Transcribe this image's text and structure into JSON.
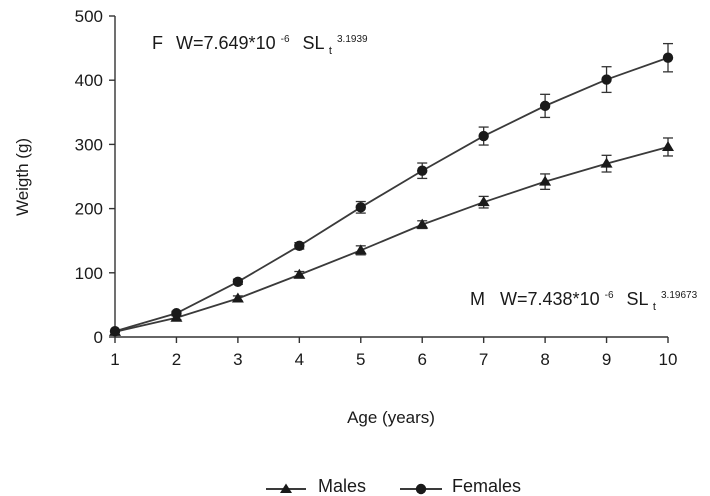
{
  "chart_data": {
    "type": "line",
    "title": "",
    "xlabel": "Age (years)",
    "ylabel": "Weigth (g)",
    "x": [
      1,
      2,
      3,
      4,
      5,
      6,
      7,
      8,
      9,
      10
    ],
    "x_ticks": [
      "1",
      "2",
      "3",
      "4",
      "5",
      "6",
      "7",
      "8",
      "9",
      "10"
    ],
    "xlim": [
      1,
      10
    ],
    "ylim": [
      0,
      500
    ],
    "y_ticks": [
      "0",
      "100",
      "200",
      "300",
      "400",
      "500"
    ],
    "grid": false,
    "legend_position": "bottom-center",
    "series": [
      {
        "name": "Males",
        "marker": "triangle",
        "color": "#3a3a3a",
        "values": [
          8,
          30,
          60,
          97,
          135,
          175,
          210,
          242,
          270,
          296
        ],
        "errors": [
          2,
          3,
          4,
          5,
          7,
          6,
          9,
          12,
          13,
          14
        ]
      },
      {
        "name": "Females",
        "marker": "circle",
        "color": "#3a3a3a",
        "values": [
          9,
          37,
          86,
          142,
          202,
          259,
          313,
          360,
          401,
          435
        ],
        "errors": [
          2,
          3,
          4,
          5,
          9,
          12,
          14,
          18,
          20,
          22
        ]
      }
    ],
    "annotations": [
      {
        "label": "F",
        "text": "W=7.649*10",
        "exp": "-6",
        "var": "SL",
        "sub": "t",
        "power": "3.1939"
      },
      {
        "label": "M",
        "text": "W=7.438*10",
        "exp": "-6",
        "var": "SL",
        "sub": "t",
        "power": "3.19673"
      }
    ]
  }
}
